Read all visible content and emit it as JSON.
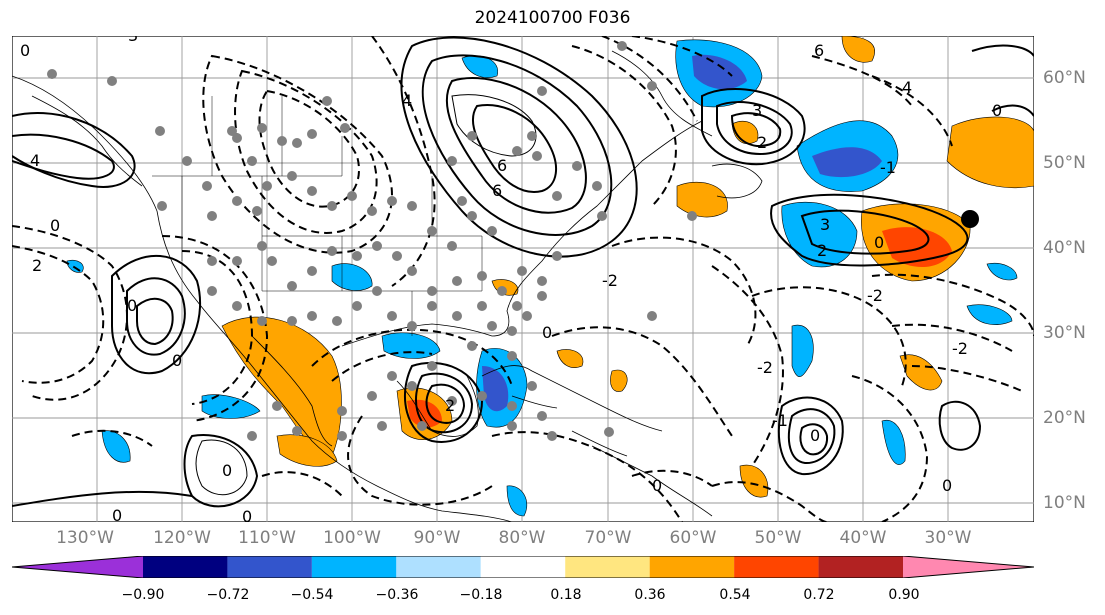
{
  "title": "2024100700 F036",
  "lon_labels": [
    "130°W",
    "120°W",
    "110°W",
    "100°W",
    "90°W",
    "80°W",
    "70°W",
    "60°W",
    "50°W",
    "40°W",
    "30°W"
  ],
  "lat_labels": [
    "60°N",
    "50°N",
    "40°N",
    "30°N",
    "20°N",
    "10°N"
  ],
  "colorbar": {
    "ticks": [
      "−0.90",
      "−0.72",
      "−0.54",
      "−0.36",
      "−0.18",
      "0.18",
      "0.36",
      "0.54",
      "0.72",
      "0.90"
    ],
    "colors": [
      "#9b30d9",
      "#000080",
      "#3355cc",
      "#00b4ff",
      "#aee0ff",
      "#ffffff",
      "#ffe680",
      "#ffa500",
      "#ff4500",
      "#b22222",
      "#ff88b0"
    ]
  },
  "contour_labels": [
    "0",
    "2",
    "3",
    "-2",
    "-1",
    "4",
    "6"
  ]
}
